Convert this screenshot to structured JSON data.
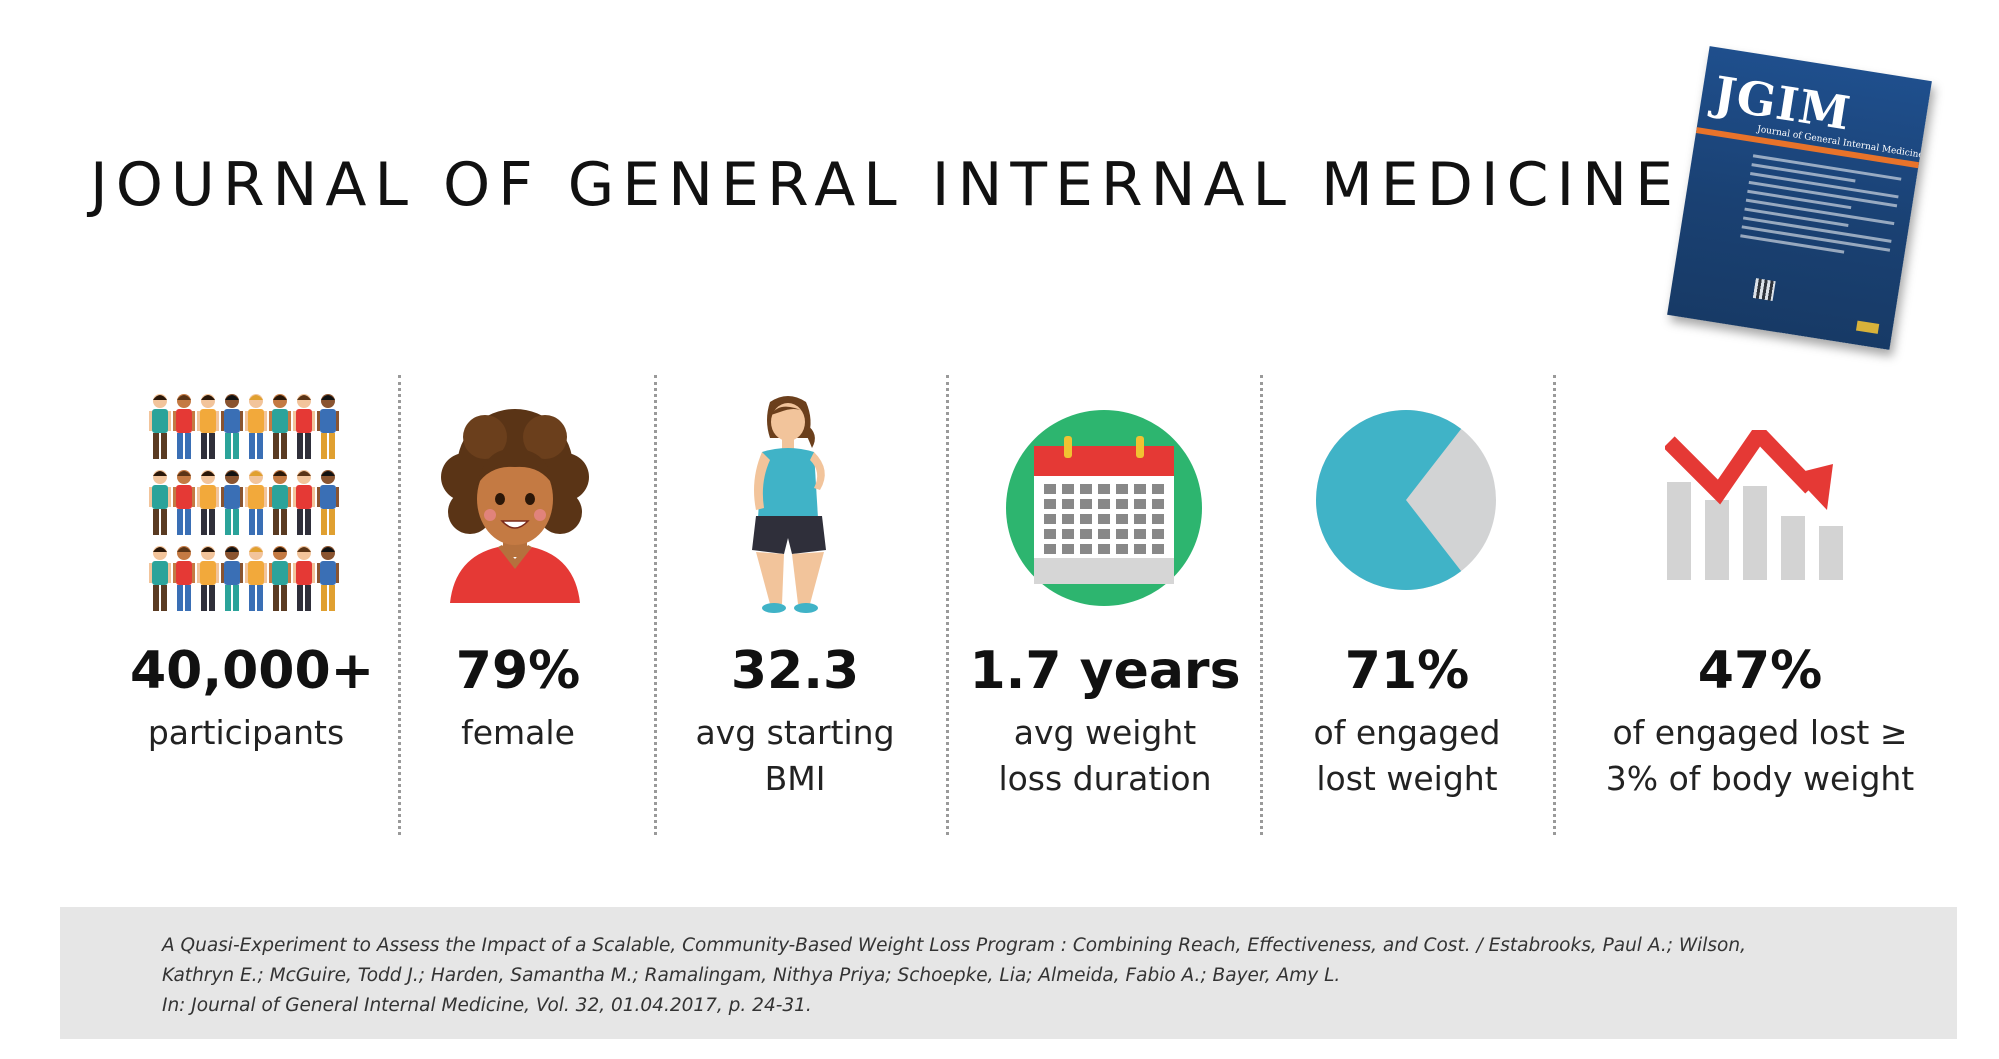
{
  "header": {
    "title": "JOURNAL OF GENERAL INTERNAL MEDICINE",
    "cover": {
      "logo": "JGIM",
      "subtitle": "Journal of General Internal Medicine"
    }
  },
  "stats": [
    {
      "icon": "crowd-icon",
      "value": "40,000+",
      "label": [
        "participants"
      ]
    },
    {
      "icon": "woman-face-icon",
      "value": "79%",
      "label": [
        "female"
      ]
    },
    {
      "icon": "woman-body-icon",
      "value": "32.3",
      "label": [
        "avg starting",
        "BMI"
      ]
    },
    {
      "icon": "calendar-icon",
      "value": "1.7 years",
      "label": [
        "avg weight",
        "loss duration"
      ]
    },
    {
      "icon": "pie-chart-icon",
      "value": "71%",
      "label": [
        "of engaged",
        "lost weight"
      ]
    },
    {
      "icon": "declining-bar-chart-icon",
      "value": "47%",
      "label": [
        "of engaged lost ≥",
        "3% of body weight"
      ]
    }
  ],
  "pie": {
    "fraction": 0.71,
    "fill": "#40b3c7",
    "rest": "#d2d3d4"
  },
  "colors": {
    "calendar_circle": "#2db56f",
    "calendar_header": "#e53935",
    "arrow": "#e53935",
    "bars": "#d3d3d3"
  },
  "citation": {
    "lines": [
      "A Quasi-Experiment to Assess the Impact of a Scalable, Community-Based Weight Loss Program : Combining Reach, Effectiveness, and Cost. / Estabrooks, Paul A.; Wilson,",
      "Kathryn E.; McGuire, Todd J.; Harden, Samantha M.; Ramalingam, Nithya Priya; Schoepke, Lia; Almeida, Fabio A.; Bayer, Amy L.",
      "In: Journal of General Internal Medicine, Vol. 32, 01.04.2017, p. 24-31."
    ]
  }
}
